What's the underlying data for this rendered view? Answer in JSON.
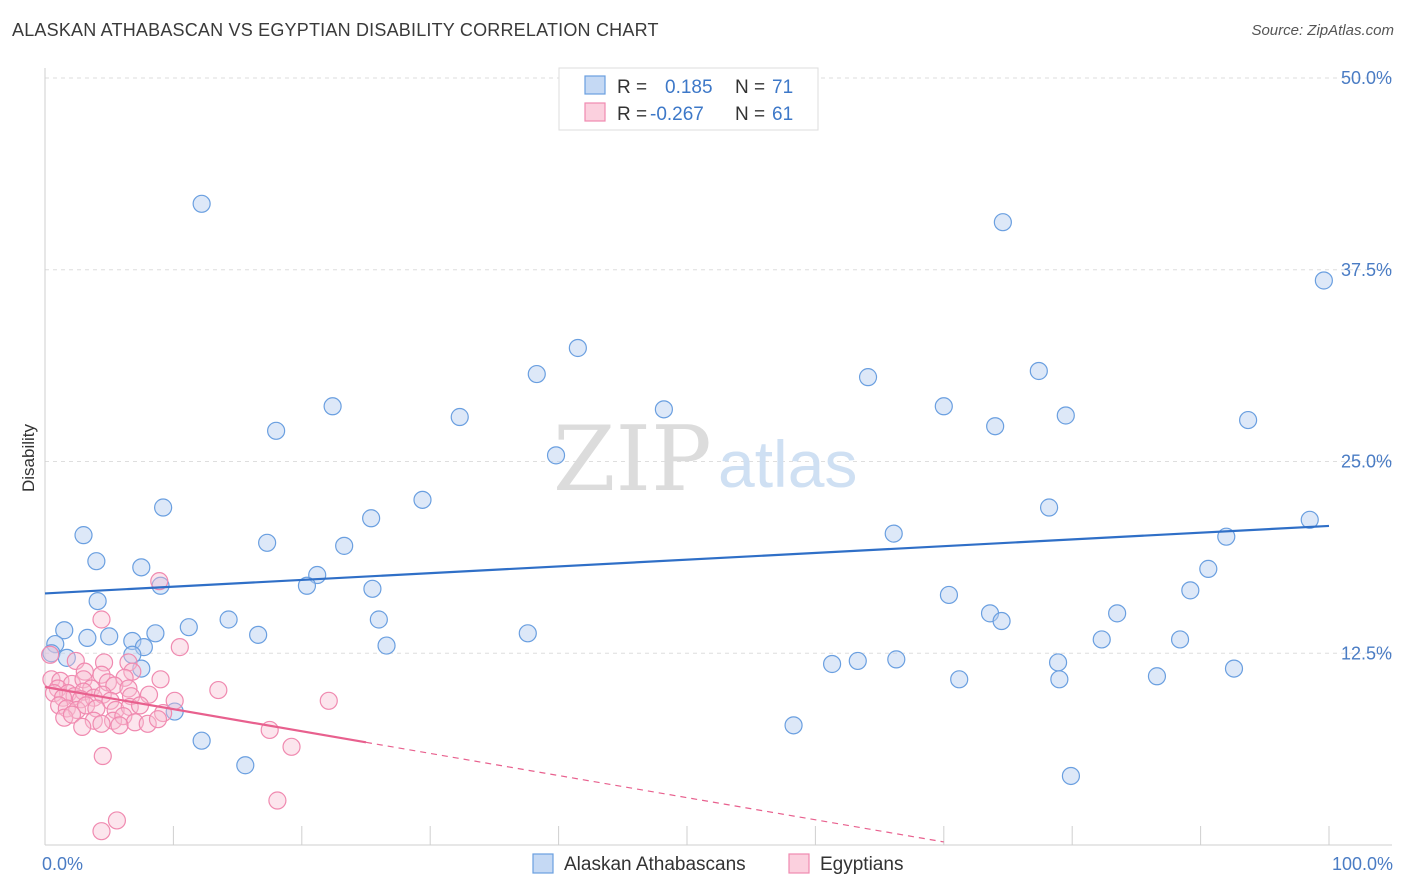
{
  "title": "ALASKAN ATHABASCAN VS EGYPTIAN DISABILITY CORRELATION CHART",
  "source": "Source: ZipAtlas.com",
  "watermark": {
    "part1": "ZIP",
    "part2": "atlas"
  },
  "chart_data": {
    "type": "scatter",
    "ylabel": "Disability",
    "xlim": [
      0,
      100
    ],
    "ylim": [
      0,
      50
    ],
    "x_ticks": [
      {
        "value": 0,
        "label": "0.0%"
      },
      {
        "value": 100,
        "label": "100.0%"
      }
    ],
    "y_ticks": [
      {
        "value": 12.5,
        "label": "12.5%"
      },
      {
        "value": 25.0,
        "label": "25.0%"
      },
      {
        "value": 37.5,
        "label": "37.5%"
      },
      {
        "value": 50.0,
        "label": "50.0%"
      }
    ],
    "legend": [
      {
        "r_label": "R =",
        "r_value": "0.185",
        "n_label": "N =",
        "n_value": "71"
      },
      {
        "r_label": "R =",
        "r_value": "-0.267",
        "n_label": "N =",
        "n_value": "61"
      }
    ],
    "series": [
      {
        "name": "Alaskan Athabascans",
        "color": "#6a9fe0",
        "line_color": "#2f6fc7",
        "trend": {
          "x": [
            0,
            100
          ],
          "y": [
            16.4,
            20.8
          ]
        },
        "trend_solid_to": 100,
        "points": [
          [
            12.2,
            41.8
          ],
          [
            74.6,
            40.6
          ],
          [
            99.6,
            36.8
          ],
          [
            41.5,
            32.4
          ],
          [
            38.3,
            30.7
          ],
          [
            64.1,
            30.5
          ],
          [
            77.4,
            30.9
          ],
          [
            22.4,
            28.6
          ],
          [
            32.3,
            27.9
          ],
          [
            48.2,
            28.4
          ],
          [
            70.0,
            28.6
          ],
          [
            79.5,
            28.0
          ],
          [
            18.0,
            27.0
          ],
          [
            74.0,
            27.3
          ],
          [
            93.7,
            27.7
          ],
          [
            39.8,
            25.4
          ],
          [
            3.0,
            20.2
          ],
          [
            9.2,
            22.0
          ],
          [
            23.3,
            19.5
          ],
          [
            25.4,
            21.3
          ],
          [
            29.4,
            22.5
          ],
          [
            78.2,
            22.0
          ],
          [
            98.5,
            21.2
          ],
          [
            17.3,
            19.7
          ],
          [
            4.0,
            18.5
          ],
          [
            7.5,
            18.1
          ],
          [
            21.2,
            17.6
          ],
          [
            66.1,
            20.3
          ],
          [
            92.0,
            20.1
          ],
          [
            90.6,
            18.0
          ],
          [
            9.0,
            16.9
          ],
          [
            20.4,
            16.9
          ],
          [
            25.5,
            16.7
          ],
          [
            70.4,
            16.3
          ],
          [
            89.2,
            16.6
          ],
          [
            4.1,
            15.9
          ],
          [
            14.3,
            14.7
          ],
          [
            26.0,
            14.7
          ],
          [
            73.6,
            15.1
          ],
          [
            74.5,
            14.6
          ],
          [
            83.5,
            15.1
          ],
          [
            1.5,
            14.0
          ],
          [
            3.3,
            13.5
          ],
          [
            5.0,
            13.6
          ],
          [
            8.6,
            13.8
          ],
          [
            11.2,
            14.2
          ],
          [
            16.6,
            13.7
          ],
          [
            6.8,
            13.3
          ],
          [
            7.7,
            12.9
          ],
          [
            0.8,
            13.1
          ],
          [
            0.5,
            12.5
          ],
          [
            1.7,
            12.2
          ],
          [
            6.8,
            12.4
          ],
          [
            26.6,
            13.0
          ],
          [
            37.6,
            13.8
          ],
          [
            82.3,
            13.4
          ],
          [
            88.4,
            13.4
          ],
          [
            7.5,
            11.5
          ],
          [
            61.3,
            11.8
          ],
          [
            66.3,
            12.1
          ],
          [
            78.9,
            11.9
          ],
          [
            92.6,
            11.5
          ],
          [
            71.2,
            10.8
          ],
          [
            63.3,
            12.0
          ],
          [
            79.0,
            10.8
          ],
          [
            86.6,
            11.0
          ],
          [
            10.1,
            8.7
          ],
          [
            12.2,
            6.8
          ],
          [
            15.6,
            5.2
          ],
          [
            58.3,
            7.8
          ],
          [
            79.9,
            4.5
          ]
        ]
      },
      {
        "name": "Egyptians",
        "color": "#f08ab0",
        "line_color": "#e8608e",
        "trend": {
          "x": [
            0,
            70
          ],
          "y": [
            10.3,
            0.2
          ]
        },
        "trend_solid_to": 25,
        "points": [
          [
            8.9,
            17.2
          ],
          [
            4.4,
            14.7
          ],
          [
            10.5,
            12.9
          ],
          [
            0.4,
            12.4
          ],
          [
            2.4,
            12.0
          ],
          [
            4.6,
            11.9
          ],
          [
            6.5,
            11.9
          ],
          [
            3.1,
            11.3
          ],
          [
            4.4,
            11.1
          ],
          [
            6.8,
            11.3
          ],
          [
            0.5,
            10.8
          ],
          [
            1.2,
            10.7
          ],
          [
            2.1,
            10.5
          ],
          [
            3.0,
            10.8
          ],
          [
            3.6,
            10.2
          ],
          [
            4.9,
            10.6
          ],
          [
            6.2,
            10.9
          ],
          [
            9.0,
            10.8
          ],
          [
            1.0,
            10.2
          ],
          [
            1.8,
            9.9
          ],
          [
            2.3,
            9.7
          ],
          [
            3.0,
            10.0
          ],
          [
            5.4,
            10.4
          ],
          [
            6.5,
            10.2
          ],
          [
            0.7,
            9.9
          ],
          [
            1.4,
            9.6
          ],
          [
            2.8,
            9.5
          ],
          [
            3.8,
            9.6
          ],
          [
            4.5,
            9.8
          ],
          [
            5.1,
            9.4
          ],
          [
            6.7,
            9.7
          ],
          [
            8.1,
            9.8
          ],
          [
            10.1,
            9.4
          ],
          [
            13.5,
            10.1
          ],
          [
            22.1,
            9.4
          ],
          [
            1.1,
            9.1
          ],
          [
            1.7,
            8.9
          ],
          [
            2.5,
            8.8
          ],
          [
            3.2,
            9.1
          ],
          [
            4.0,
            8.9
          ],
          [
            5.5,
            8.8
          ],
          [
            6.6,
            9.0
          ],
          [
            7.4,
            9.1
          ],
          [
            9.2,
            8.6
          ],
          [
            1.5,
            8.3
          ],
          [
            2.1,
            8.5
          ],
          [
            3.8,
            8.1
          ],
          [
            5.3,
            8.1
          ],
          [
            6.1,
            8.4
          ],
          [
            7.0,
            8.0
          ],
          [
            8.0,
            7.9
          ],
          [
            2.9,
            7.7
          ],
          [
            4.4,
            7.9
          ],
          [
            5.8,
            7.8
          ],
          [
            8.8,
            8.2
          ],
          [
            17.5,
            7.5
          ],
          [
            19.2,
            6.4
          ],
          [
            4.5,
            5.8
          ],
          [
            18.1,
            2.9
          ],
          [
            5.6,
            1.6
          ],
          [
            4.4,
            0.9
          ]
        ]
      }
    ]
  }
}
